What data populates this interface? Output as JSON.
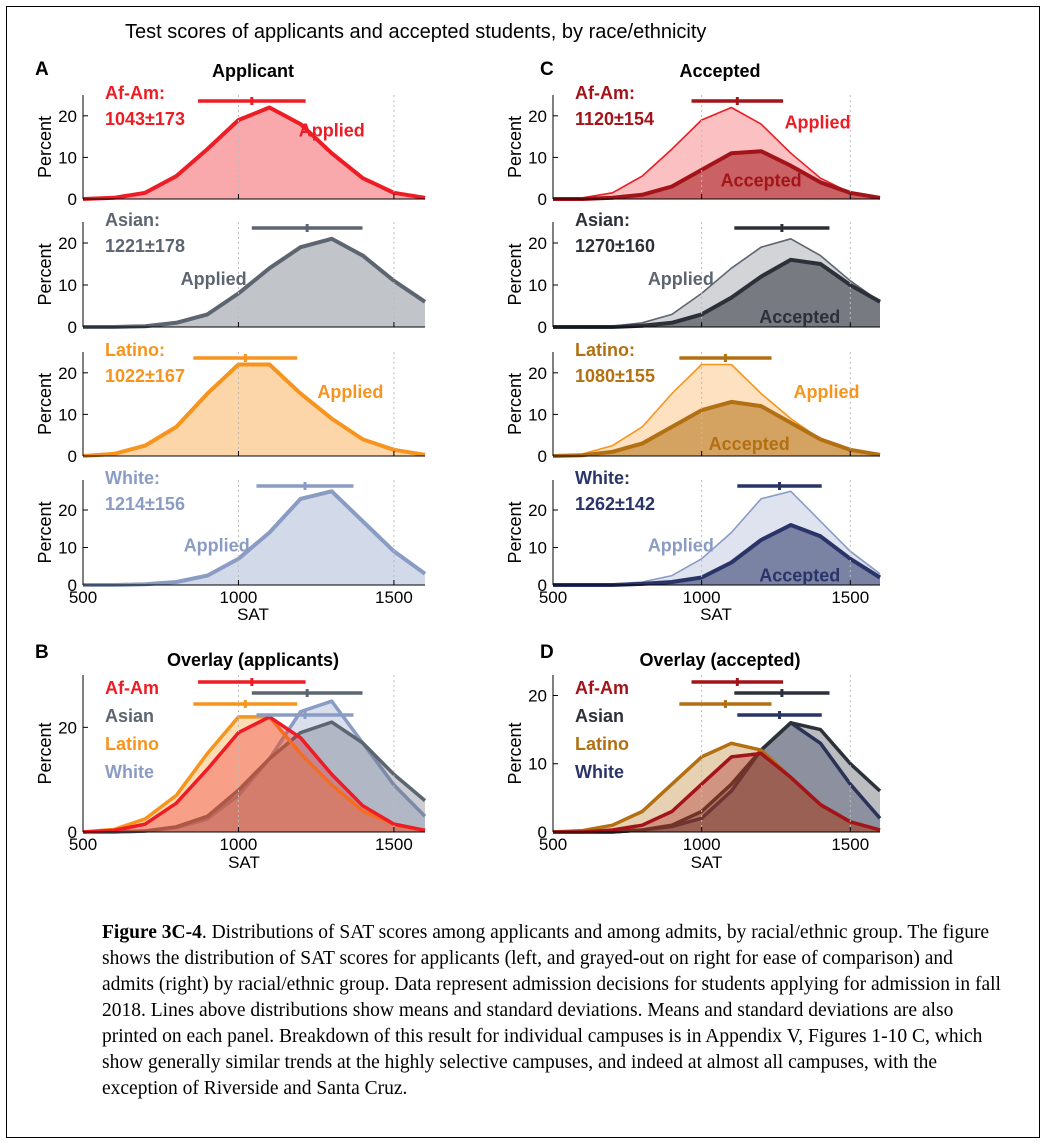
{
  "figure_title": "Test scores of applicants and accepted students, by race/ethnicity",
  "caption": {
    "label": "Figure 3C-4",
    "text": ". Distributions of SAT scores among applicants and among admits, by racial/ethnic group. The figure shows the distribution of SAT scores for applicants (left, and grayed-out on right for ease of comparison) and admits (right) by racial/ethnic group. Data represent admission decisions for students applying for admission in fall 2018. Lines above distributions show means and standard deviations. Means and standard deviations are also printed on each panel. Breakdown of this result for individual campuses is in Appendix V, Figures 1-10 C, which show generally similar trends at the highly selective campuses, and indeed at almost all campuses, with the exception of Riverside and Santa Cruz."
  },
  "colors": {
    "afam_applied": "#ee1c24",
    "afam_accepted": "#a3141a",
    "asian_applied": "#5d6570",
    "asian_accepted": "#2c3039",
    "latino_applied": "#f7941d",
    "latino_accepted": "#b37012",
    "white_applied": "#8a9cc4",
    "white_accepted": "#2a3468"
  },
  "chart_data": [
    {
      "panel": "A",
      "title": "Applicant",
      "type": "area",
      "xlabel": "SAT",
      "ylabel": "Percent",
      "x": [
        500,
        600,
        700,
        800,
        900,
        1000,
        1100,
        1200,
        1300,
        1400,
        1500,
        1600
      ],
      "subplots": [
        {
          "group": "Af-Am",
          "label": "Af-Am:",
          "stat": "1043±173",
          "applied_label": "Applied",
          "ylim": [
            0,
            25
          ],
          "yticks": [
            0,
            10,
            20
          ],
          "mean": 1043,
          "sd": 173,
          "applied": [
            0,
            0.3,
            1.5,
            5.5,
            12,
            19,
            22,
            18,
            11,
            5,
            1.5,
            0.3
          ]
        },
        {
          "group": "Asian",
          "label": "Asian:",
          "stat": "1221±178",
          "applied_label": "Applied",
          "ylim": [
            0,
            25
          ],
          "yticks": [
            0,
            10,
            20
          ],
          "mean": 1221,
          "sd": 178,
          "applied": [
            0,
            0,
            0.2,
            1,
            3,
            8,
            14,
            19,
            21,
            17,
            11,
            6
          ]
        },
        {
          "group": "Latino",
          "label": "Latino:",
          "stat": "1022±167",
          "applied_label": "Applied",
          "ylim": [
            0,
            25
          ],
          "yticks": [
            0,
            10,
            20
          ],
          "mean": 1022,
          "sd": 167,
          "applied": [
            0,
            0.5,
            2.5,
            7,
            15,
            22,
            22,
            15,
            9,
            4,
            1.5,
            0.3
          ]
        },
        {
          "group": "White",
          "label": "White:",
          "stat": "1214±156",
          "applied_label": "Applied",
          "ylim": [
            0,
            28
          ],
          "yticks": [
            0,
            10,
            20
          ],
          "mean": 1214,
          "sd": 156,
          "applied": [
            0,
            0,
            0.2,
            0.8,
            2.5,
            7,
            14,
            23,
            25,
            17,
            9,
            3
          ]
        }
      ]
    },
    {
      "panel": "C",
      "title": "Accepted",
      "type": "area",
      "xlabel": "SAT",
      "ylabel": "Percent",
      "x": [
        500,
        600,
        700,
        800,
        900,
        1000,
        1100,
        1200,
        1300,
        1400,
        1500,
        1600
      ],
      "subplots": [
        {
          "group": "Af-Am",
          "label": "Af-Am:",
          "stat": "1120±154",
          "applied_label": "Applied",
          "accepted_label": "Accepted",
          "ylim": [
            0,
            25
          ],
          "yticks": [
            0,
            10,
            20
          ],
          "mean": 1120,
          "sd": 154,
          "applied": [
            0,
            0.3,
            1.5,
            5.5,
            12,
            19,
            22,
            18,
            11,
            5,
            1.5,
            0.3
          ],
          "accepted": [
            0,
            0,
            0.3,
            1,
            3,
            7,
            11,
            11.5,
            8,
            4,
            1.5,
            0.3
          ]
        },
        {
          "group": "Asian",
          "label": "Asian:",
          "stat": "1270±160",
          "applied_label": "Applied",
          "accepted_label": "Accepted",
          "ylim": [
            0,
            25
          ],
          "yticks": [
            0,
            10,
            20
          ],
          "mean": 1270,
          "sd": 160,
          "applied": [
            0,
            0,
            0.2,
            1,
            3,
            8,
            14,
            19,
            21,
            17,
            11,
            6
          ],
          "accepted": [
            0,
            0,
            0,
            0.3,
            1,
            3,
            7,
            12,
            16,
            15,
            10,
            6
          ]
        },
        {
          "group": "Latino",
          "label": "Latino:",
          "stat": "1080±155",
          "applied_label": "Applied",
          "accepted_label": "Accepted",
          "ylim": [
            0,
            25
          ],
          "yticks": [
            0,
            10,
            20
          ],
          "mean": 1080,
          "sd": 155,
          "applied": [
            0,
            0.5,
            2.5,
            7,
            15,
            22,
            22,
            15,
            9,
            4,
            1.5,
            0.3
          ],
          "accepted": [
            0,
            0.2,
            1,
            3,
            7,
            11,
            13,
            12,
            8,
            4,
            1.5,
            0.3
          ]
        },
        {
          "group": "White",
          "label": "White:",
          "stat": "1262±142",
          "applied_label": "Applied",
          "accepted_label": "Accepted",
          "ylim": [
            0,
            28
          ],
          "yticks": [
            0,
            10,
            20
          ],
          "mean": 1262,
          "sd": 142,
          "applied": [
            0,
            0,
            0.2,
            0.8,
            2.5,
            7,
            14,
            23,
            25,
            17,
            9,
            3
          ],
          "accepted": [
            0,
            0,
            0,
            0.3,
            0.8,
            2,
            6,
            12,
            16,
            13,
            7,
            2
          ]
        }
      ]
    },
    {
      "panel": "B",
      "title": "Overlay (applicants)",
      "type": "area",
      "xlabel": "SAT",
      "ylabel": "Percent",
      "ylim": [
        0,
        30
      ],
      "yticks": [
        0,
        20
      ],
      "x": [
        500,
        600,
        700,
        800,
        900,
        1000,
        1100,
        1200,
        1300,
        1400,
        1500,
        1600
      ],
      "legend": [
        "Af-Am",
        "Asian",
        "Latino",
        "White"
      ]
    },
    {
      "panel": "D",
      "title": "Overlay (accepted)",
      "type": "area",
      "xlabel": "SAT",
      "ylabel": "Percent",
      "ylim": [
        0,
        23
      ],
      "yticks": [
        0,
        10,
        20
      ],
      "x": [
        500,
        600,
        700,
        800,
        900,
        1000,
        1100,
        1200,
        1300,
        1400,
        1500,
        1600
      ],
      "legend": [
        "Af-Am",
        "Asian",
        "Latino",
        "White"
      ]
    }
  ],
  "xticks": [
    500,
    1000,
    1500
  ],
  "xlim": [
    500,
    1600
  ]
}
